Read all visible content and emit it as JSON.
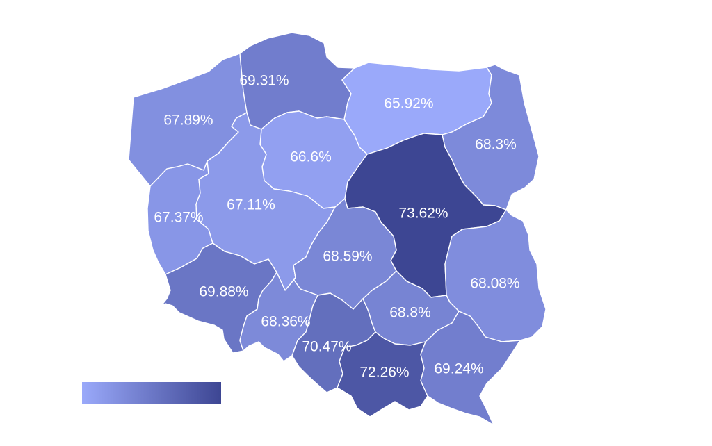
{
  "map": {
    "scale": {
      "min_color": "#9aa9fa",
      "max_color": "#3d4693",
      "min_value": 65.92,
      "max_value": 73.62
    },
    "regions": [
      {
        "id": "zachodniopomorskie",
        "label": "67.89%",
        "value": 67.89
      },
      {
        "id": "pomorskie",
        "label": "69.31%",
        "value": 69.31
      },
      {
        "id": "warminsko-mazurskie",
        "label": "65.92%",
        "value": 65.92
      },
      {
        "id": "podlaskie",
        "label": "68.3%",
        "value": 68.3
      },
      {
        "id": "kujawsko-pomorskie",
        "label": "66.6%",
        "value": 66.6
      },
      {
        "id": "lubuskie",
        "label": "67.37%",
        "value": 67.37
      },
      {
        "id": "wielkopolskie",
        "label": "67.11%",
        "value": 67.11
      },
      {
        "id": "mazowieckie",
        "label": "73.62%",
        "value": 73.62
      },
      {
        "id": "lodzkie",
        "label": "68.59%",
        "value": 68.59
      },
      {
        "id": "lubelskie",
        "label": "68.08%",
        "value": 68.08
      },
      {
        "id": "dolnoslaskie",
        "label": "69.88%",
        "value": 69.88
      },
      {
        "id": "opolskie",
        "label": "68.36%",
        "value": 68.36
      },
      {
        "id": "slaskie",
        "label": "70.47%",
        "value": 70.47
      },
      {
        "id": "swietokrzyskie",
        "label": "68.8%",
        "value": 68.8
      },
      {
        "id": "malopolskie",
        "label": "72.26%",
        "value": 72.26
      },
      {
        "id": "podkarpackie",
        "label": "69.24%",
        "value": 69.24
      }
    ]
  }
}
